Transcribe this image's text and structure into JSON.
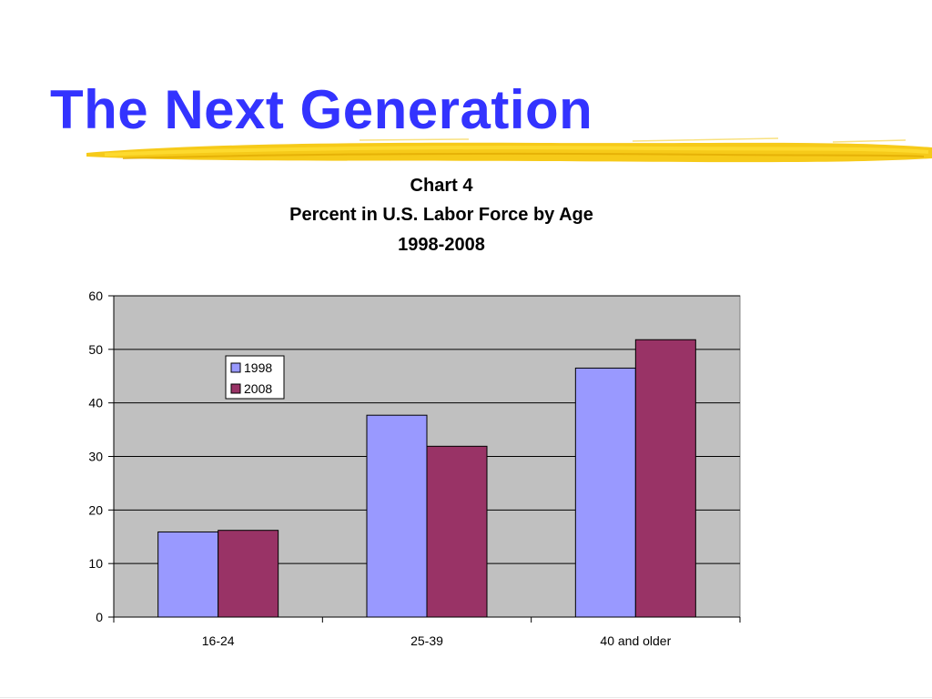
{
  "slide": {
    "title": "The Next Generation"
  },
  "colors": {
    "title": "#3333ff",
    "brush": "#f5c400",
    "plot_bg": "#c0c0c0"
  },
  "chart_data": {
    "type": "bar",
    "title_lines": [
      "Chart 4",
      "Percent in U.S. Labor Force by Age",
      "1998-2008"
    ],
    "categories": [
      "16-24",
      "25-39",
      "40 and older"
    ],
    "series": [
      {
        "name": "1998",
        "values": [
          15.9,
          37.7,
          46.5
        ],
        "color": "#9999ff"
      },
      {
        "name": "2008",
        "values": [
          16.2,
          31.9,
          51.8
        ],
        "color": "#993366"
      }
    ],
    "ylim": [
      0,
      60
    ],
    "yticks": [
      "0",
      "10",
      "20",
      "30",
      "40",
      "50",
      "60"
    ],
    "grid": true,
    "legend_position": "top-left"
  }
}
